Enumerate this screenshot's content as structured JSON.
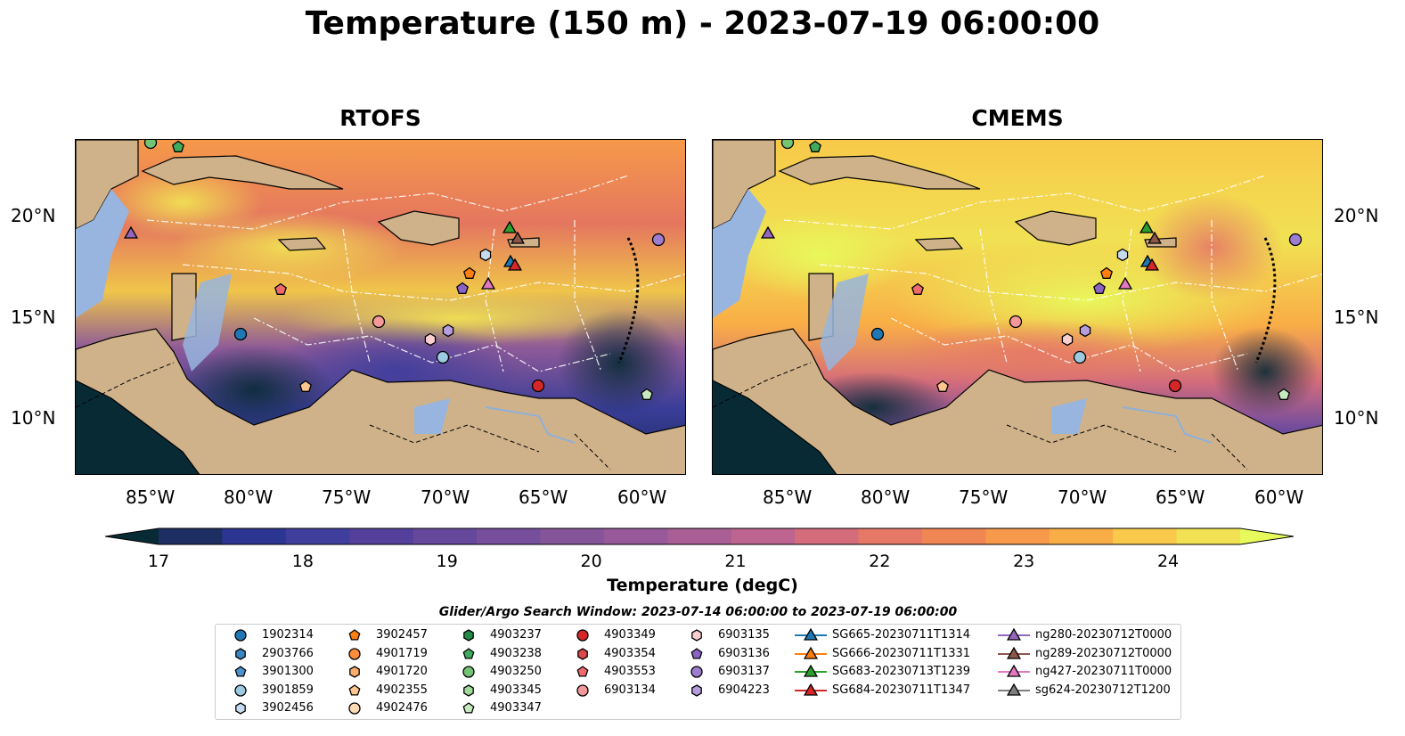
{
  "title": "Temperature (150 m) - 2023-07-19 06:00:00",
  "panels": [
    {
      "title": "RTOFS"
    },
    {
      "title": "CMEMS"
    }
  ],
  "axes": {
    "lat_labels": [
      "20°N",
      "15°N",
      "10°N"
    ],
    "lon_labels": [
      "85°W",
      "80°W",
      "75°W",
      "70°W",
      "65°W",
      "60°W"
    ]
  },
  "colorbar": {
    "label": "Temperature (degC)",
    "range": [
      17,
      24.5
    ],
    "ticks": [
      "17",
      "18",
      "19",
      "20",
      "21",
      "22",
      "23",
      "24"
    ],
    "colors": [
      "#082a35",
      "#1d2f62",
      "#2c3592",
      "#3f3e9c",
      "#543f9b",
      "#65489c",
      "#764e9c",
      "#85559a",
      "#97599a",
      "#a95e96",
      "#bd6490",
      "#d46c7c",
      "#e67867",
      "#f18655",
      "#f6994a",
      "#f9ad46",
      "#f8c94a",
      "#f1e153",
      "#e8fa5b"
    ]
  },
  "search_window": "Glider/Argo Search Window: 2023-07-14 06:00:00 to 2023-07-19 06:00:00",
  "legend": [
    {
      "label": "1902314",
      "marker": "circle",
      "color": "#1f77b4"
    },
    {
      "label": "2903766",
      "marker": "hexagon",
      "color": "#3a86c0"
    },
    {
      "label": "3901300",
      "marker": "pentagon",
      "color": "#4b93cc"
    },
    {
      "label": "3901859",
      "marker": "circle",
      "color": "#9ecae1"
    },
    {
      "label": "3902456",
      "marker": "hexagon",
      "color": "#c6dbef"
    },
    {
      "label": "3902457",
      "marker": "pentagon",
      "color": "#ff7f0e"
    },
    {
      "label": "4901719",
      "marker": "circle",
      "color": "#fd8d3c"
    },
    {
      "label": "4901720",
      "marker": "hexagon",
      "color": "#fdae6b"
    },
    {
      "label": "4902355",
      "marker": "pentagon",
      "color": "#fdc48e"
    },
    {
      "label": "4902476",
      "marker": "circle",
      "color": "#fdd9b4"
    },
    {
      "label": "4903237",
      "marker": "hexagon",
      "color": "#238b45"
    },
    {
      "label": "4903238",
      "marker": "pentagon",
      "color": "#41ab5d"
    },
    {
      "label": "4903250",
      "marker": "circle",
      "color": "#74c476"
    },
    {
      "label": "4903345",
      "marker": "hexagon",
      "color": "#a1d99b"
    },
    {
      "label": "4903347",
      "marker": "pentagon",
      "color": "#c7e9c0"
    },
    {
      "label": "4903349",
      "marker": "circle",
      "color": "#d62728"
    },
    {
      "label": "4903354",
      "marker": "hexagon",
      "color": "#e0474c"
    },
    {
      "label": "4903553",
      "marker": "pentagon",
      "color": "#f06a6d"
    },
    {
      "label": "6903134",
      "marker": "circle",
      "color": "#f4999a"
    },
    {
      "label": "6903135",
      "marker": "hexagon",
      "color": "#fbcfd0"
    },
    {
      "label": "6903136",
      "marker": "pentagon",
      "color": "#8a63c4"
    },
    {
      "label": "6903137",
      "marker": "circle",
      "color": "#9e7dd0"
    },
    {
      "label": "6904223",
      "marker": "hexagon",
      "color": "#b69ddc"
    },
    {
      "label": "SG665-20230711T1314",
      "marker": "triangle-line",
      "color": "#1f77b4"
    },
    {
      "label": "SG666-20230711T1331",
      "marker": "triangle-line",
      "color": "#ff7f0e"
    },
    {
      "label": "SG683-20230713T1239",
      "marker": "triangle-line",
      "color": "#2ca02c"
    },
    {
      "label": "SG684-20230711T1347",
      "marker": "triangle-line",
      "color": "#d62728"
    },
    {
      "label": "ng280-20230712T0000",
      "marker": "triangle-line",
      "color": "#9467bd"
    },
    {
      "label": "ng289-20230712T0000",
      "marker": "triangle-line",
      "color": "#8c564b"
    },
    {
      "label": "ng427-20230711T0000",
      "marker": "triangle-line",
      "color": "#e377c2"
    },
    {
      "label": "sg624-20230712T1200",
      "marker": "triangle-line",
      "color": "#7f7f7f"
    }
  ]
}
